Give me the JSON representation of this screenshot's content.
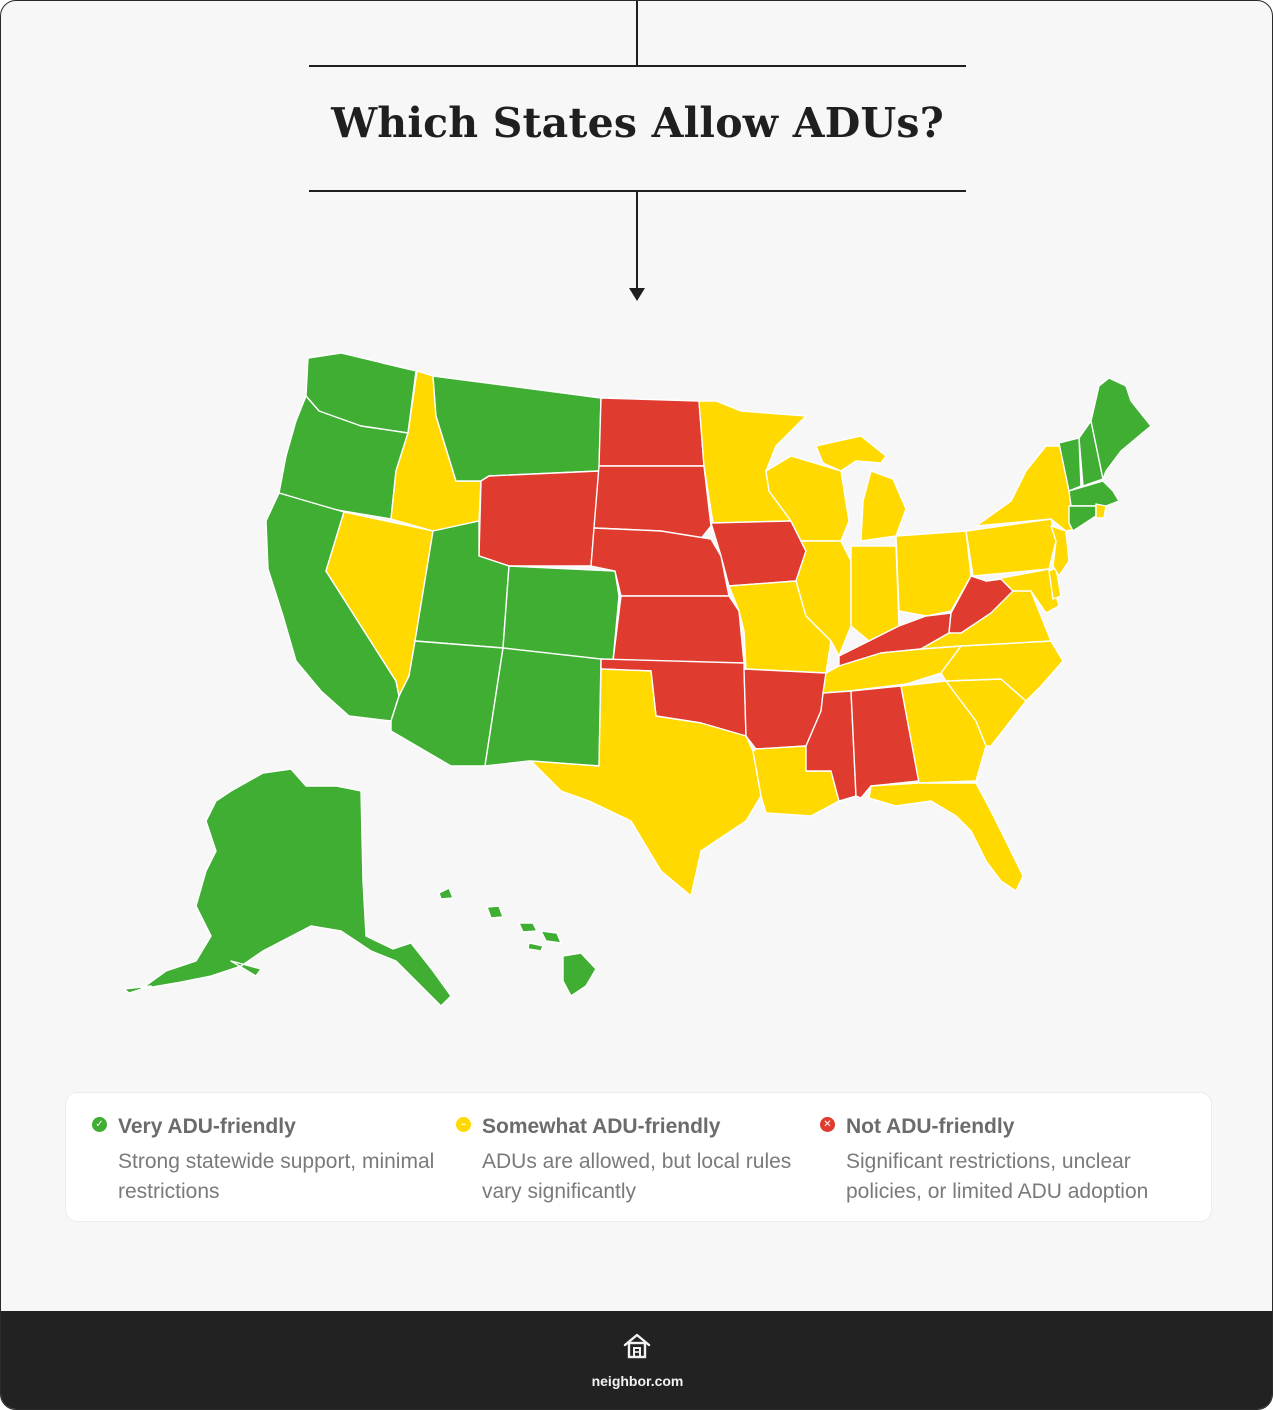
{
  "title": "Which States Allow ADUs?",
  "colors": {
    "very": "#3fae33",
    "somewhat": "#ffd900",
    "not": "#e03b2f",
    "border": "#ffffff"
  },
  "states": {
    "very": [
      "Washington",
      "Oregon",
      "California",
      "Montana",
      "Utah",
      "Colorado",
      "Arizona",
      "New Mexico",
      "Alaska",
      "Hawaii",
      "Maine",
      "Vermont",
      "New Hampshire",
      "Massachusetts",
      "Connecticut"
    ],
    "somewhat": [
      "Idaho",
      "Nevada",
      "Minnesota",
      "Wisconsin",
      "Michigan",
      "Illinois",
      "Indiana",
      "Ohio",
      "Missouri",
      "Texas",
      "Louisiana",
      "Tennessee",
      "Georgia",
      "Florida",
      "South Carolina",
      "North Carolina",
      "Virginia",
      "Maryland",
      "Delaware",
      "Pennsylvania",
      "New York",
      "New Jersey",
      "Rhode Island"
    ],
    "not": [
      "North Dakota",
      "South Dakota",
      "Wyoming",
      "Nebraska",
      "Kansas",
      "Oklahoma",
      "Iowa",
      "Arkansas",
      "Mississippi",
      "Alabama",
      "Kentucky",
      "West Virginia"
    ]
  },
  "legend": {
    "very": {
      "icon": "check-icon",
      "label": "Very ADU-friendly",
      "desc": "Strong statewide support, minimal restrictions"
    },
    "somewhat": {
      "icon": "minus-icon",
      "label": "Somewhat ADU-friendly",
      "desc": "ADUs are allowed, but local rules vary significantly"
    },
    "not": {
      "icon": "x-icon",
      "label": "Not ADU-friendly",
      "desc": "Significant restrictions, unclear policies, or limited ADU adoption"
    }
  },
  "footer": {
    "logo_icon": "house-logo-icon",
    "site": "neighbor.com"
  }
}
